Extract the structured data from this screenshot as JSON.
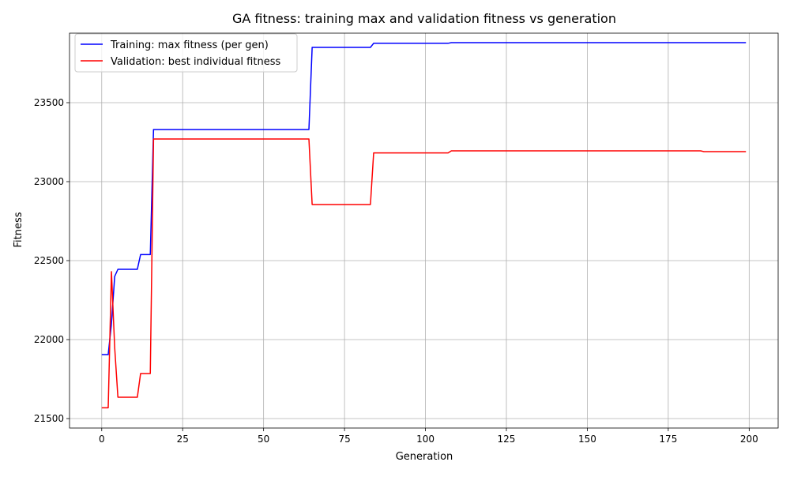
{
  "chart_data": {
    "type": "line",
    "title": "GA fitness: training max and validation fitness vs generation",
    "xlabel": "Generation",
    "ylabel": "Fitness",
    "xlim": [
      -9.95,
      208.95
    ],
    "ylim": [
      21440,
      23940
    ],
    "xticks": [
      0,
      25,
      50,
      75,
      100,
      125,
      150,
      175,
      200
    ],
    "yticks": [
      21500,
      22000,
      22500,
      23000,
      23500
    ],
    "grid": true,
    "legend_position": "top-left",
    "series": [
      {
        "name": "Training: max fitness (per gen)",
        "color": "#0000ff",
        "points": [
          [
            0,
            21905
          ],
          [
            2,
            21905
          ],
          [
            3,
            22100
          ],
          [
            4,
            22400
          ],
          [
            5,
            22445
          ],
          [
            11,
            22445
          ],
          [
            12,
            22538
          ],
          [
            15,
            22538
          ],
          [
            16,
            23330
          ],
          [
            64,
            23330
          ],
          [
            65,
            23850
          ],
          [
            83,
            23850
          ],
          [
            84,
            23876
          ],
          [
            107,
            23876
          ],
          [
            108,
            23880
          ],
          [
            199,
            23880
          ]
        ]
      },
      {
        "name": "Validation: best individual fitness",
        "color": "#ff0000",
        "points": [
          [
            0,
            21568
          ],
          [
            2,
            21568
          ],
          [
            3,
            22430
          ],
          [
            4,
            21950
          ],
          [
            5,
            21635
          ],
          [
            11,
            21635
          ],
          [
            12,
            21785
          ],
          [
            15,
            21785
          ],
          [
            16,
            23270
          ],
          [
            64,
            23270
          ],
          [
            65,
            22855
          ],
          [
            83,
            22855
          ],
          [
            84,
            23182
          ],
          [
            107,
            23182
          ],
          [
            108,
            23195
          ],
          [
            185,
            23195
          ],
          [
            186,
            23190
          ],
          [
            199,
            23190
          ]
        ]
      }
    ]
  }
}
